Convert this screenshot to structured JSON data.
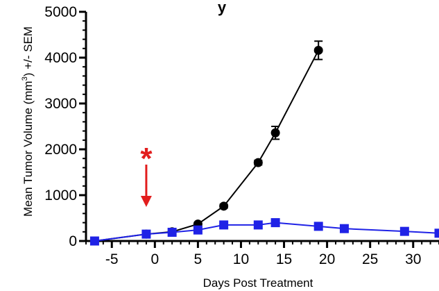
{
  "chart_data": {
    "type": "line",
    "title": "y",
    "xlabel": "Days Post Treatment",
    "ylabel_main": "Mean Tumor Volume (mm",
    "ylabel_sup": "3",
    "ylabel_tail": ") +/- SEM",
    "xlim": [
      -8,
      33
    ],
    "ylim": [
      0,
      5000
    ],
    "x_ticks": [
      -5,
      0,
      5,
      10,
      15,
      20,
      25,
      30
    ],
    "y_ticks": [
      0,
      1000,
      2000,
      3000,
      4000,
      5000
    ],
    "grid": false,
    "series": [
      {
        "color": "#000000",
        "marker": "circle",
        "points": [
          {
            "x": -7,
            "y": 0
          },
          {
            "x": -1,
            "y": 150
          },
          {
            "x": 2,
            "y": 200
          },
          {
            "x": 5,
            "y": 370,
            "err": 30
          },
          {
            "x": 8,
            "y": 760,
            "err": 40
          },
          {
            "x": 12,
            "y": 1710,
            "err": 50
          },
          {
            "x": 14,
            "y": 2360,
            "err": 140
          },
          {
            "x": 19,
            "y": 4160,
            "err": 200
          }
        ]
      },
      {
        "color": "#1f22e6",
        "marker": "square",
        "points": [
          {
            "x": -7,
            "y": 0
          },
          {
            "x": -1,
            "y": 150
          },
          {
            "x": 2,
            "y": 190
          },
          {
            "x": 5,
            "y": 240
          },
          {
            "x": 8,
            "y": 350
          },
          {
            "x": 12,
            "y": 350
          },
          {
            "x": 14,
            "y": 400
          },
          {
            "x": 19,
            "y": 320
          },
          {
            "x": 22,
            "y": 270
          },
          {
            "x": 29,
            "y": 210
          },
          {
            "x": 33,
            "y": 170
          }
        ]
      }
    ],
    "annotation": {
      "symbol": "*",
      "x": -1,
      "color": "#e21d1d"
    }
  }
}
